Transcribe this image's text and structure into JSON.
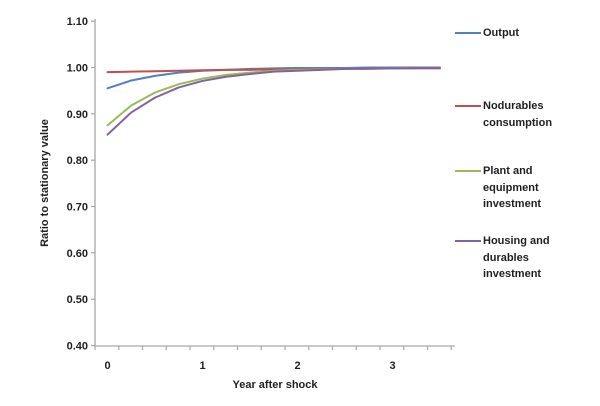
{
  "chart_data": {
    "type": "line",
    "title": "",
    "xlabel": "Year after shock",
    "ylabel": "Ratio to stationary value",
    "x": [
      0,
      0.25,
      0.5,
      0.75,
      1,
      1.25,
      1.5,
      1.75,
      2,
      2.25,
      2.5,
      2.75,
      3,
      3.25,
      3.5
    ],
    "x_tick_labels": [
      "0",
      "1",
      "2",
      "3"
    ],
    "x_tick_values": [
      0,
      1,
      2,
      3
    ],
    "xlim": [
      0,
      3.5
    ],
    "ylim": [
      0.4,
      1.1
    ],
    "y_ticks": [
      1.1,
      1.0,
      0.9,
      0.8,
      0.7,
      0.6,
      0.5,
      0.4
    ],
    "grid": false,
    "legend_position": "right",
    "axis_color": "#a6a6a6",
    "text_color": "#1f1f1f",
    "series": [
      {
        "name": "Output",
        "color": "#4f81bd",
        "values": [
          0.955,
          0.972,
          0.982,
          0.989,
          0.993,
          0.995,
          0.997,
          0.998,
          0.999,
          0.999,
          0.999,
          1.0,
          1.0,
          1.0,
          1.0
        ]
      },
      {
        "name": "Nodurables consumption",
        "color": "#c0504d",
        "values": [
          0.99,
          0.991,
          0.992,
          0.993,
          0.994,
          0.995,
          0.995,
          0.996,
          0.996,
          0.997,
          0.997,
          0.997,
          0.998,
          0.998,
          0.998
        ]
      },
      {
        "name": "Plant and equipment investment",
        "color": "#9bbb59",
        "values": [
          0.875,
          0.918,
          0.946,
          0.964,
          0.976,
          0.984,
          0.989,
          0.993,
          0.995,
          0.996,
          0.997,
          0.998,
          0.998,
          0.999,
          0.999
        ]
      },
      {
        "name": "Housing and durables investment",
        "color": "#8064a2",
        "values": [
          0.855,
          0.903,
          0.935,
          0.957,
          0.971,
          0.98,
          0.986,
          0.991,
          0.993,
          0.995,
          0.997,
          0.998,
          0.998,
          0.999,
          0.999
        ]
      }
    ]
  }
}
